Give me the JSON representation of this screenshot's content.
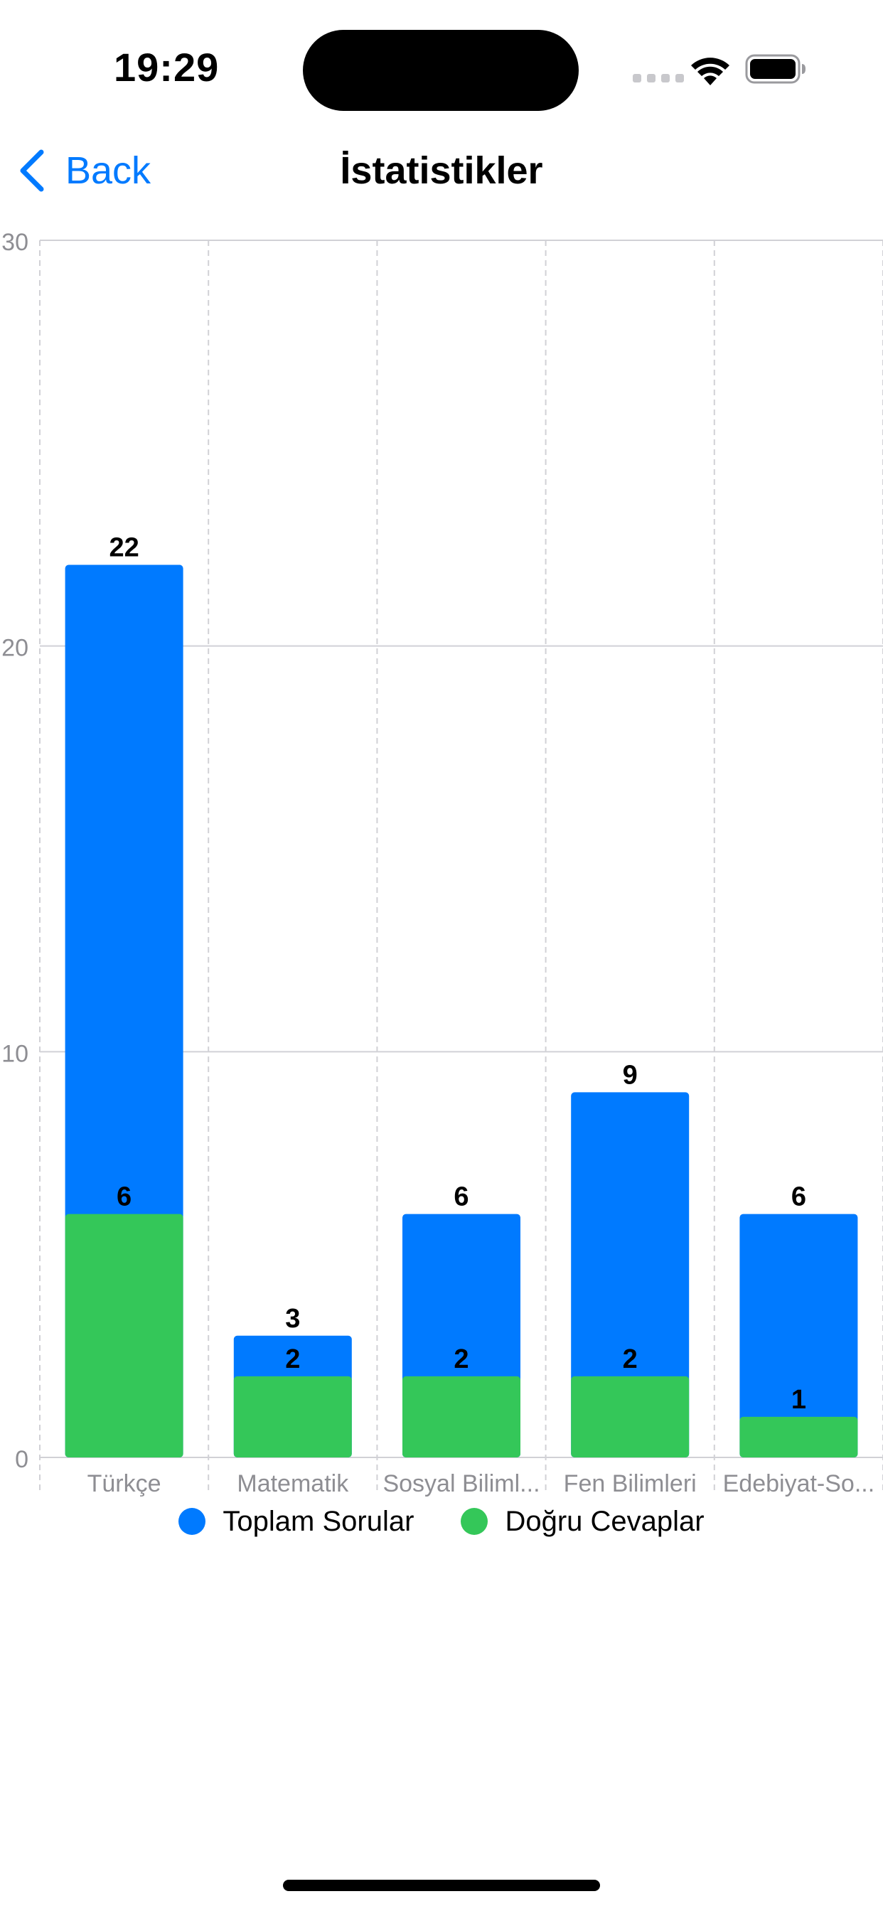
{
  "status_bar": {
    "time": "19:29"
  },
  "nav": {
    "back_label": "Back",
    "title": "İstatistikler"
  },
  "colors": {
    "accent": "#007aff",
    "total": "#007aff",
    "correct": "#34c759"
  },
  "chart_data": {
    "type": "bar",
    "stacking": "overlay",
    "categories": [
      "Türkçe",
      "Matematik",
      "Sosyal Biliml...",
      "Fen Bilimleri",
      "Edebiyat-So..."
    ],
    "series": [
      {
        "name": "Toplam Sorular",
        "color": "#007aff",
        "values": [
          22,
          3,
          6,
          9,
          6
        ]
      },
      {
        "name": "Doğru Cevaplar",
        "color": "#34c759",
        "values": [
          6,
          2,
          2,
          2,
          1
        ]
      }
    ],
    "yticks": [
      "0",
      "10",
      "20",
      "30"
    ],
    "ylim": [
      0,
      30
    ],
    "grid": true,
    "legend_position": "bottom-center"
  }
}
